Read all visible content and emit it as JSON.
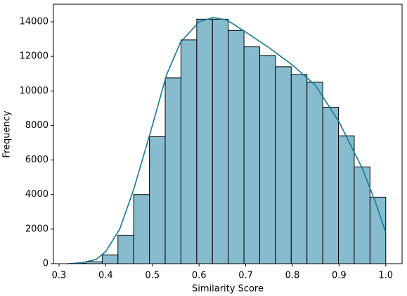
{
  "chart_data": {
    "type": "histogram",
    "xlabel": "Similarity Score",
    "ylabel": "Frequency",
    "bins": [
      0.325,
      0.35875,
      0.3925,
      0.42625,
      0.46,
      0.49375,
      0.5275,
      0.56125,
      0.595,
      0.62875,
      0.6625,
      0.69625,
      0.73,
      0.76375,
      0.7975,
      0.83125,
      0.865,
      0.89875,
      0.9325,
      0.96625,
      1.0
    ],
    "values": [
      20,
      110,
      500,
      1650,
      4000,
      7350,
      10750,
      12950,
      14150,
      14150,
      13500,
      12550,
      12050,
      11400,
      10950,
      10500,
      9050,
      7400,
      5600,
      3850
    ],
    "color": "#87bccf",
    "edgecolor": "#000000",
    "kde": {
      "color": "#157a96",
      "x": [
        0.32,
        0.35,
        0.38,
        0.4,
        0.43,
        0.46,
        0.5,
        0.53,
        0.56,
        0.6,
        0.63,
        0.66,
        0.7,
        0.75,
        0.8,
        0.85,
        0.9,
        0.95,
        0.98,
        1.0
      ],
      "y": [
        0,
        60,
        250,
        700,
        2000,
        4300,
        8000,
        10900,
        12800,
        14000,
        14250,
        14100,
        13400,
        12500,
        11500,
        10300,
        8200,
        5500,
        3400,
        1800
      ]
    },
    "xlim": [
      0.288,
      1.035
    ],
    "ylim": [
      0,
      15017
    ],
    "xticks": [
      0.3,
      0.4,
      0.5,
      0.6,
      0.7,
      0.8,
      0.9,
      {
        "value": 1,
        "label": "1.0"
      }
    ],
    "yticks": [
      0,
      2000,
      4000,
      6000,
      8000,
      10000,
      12000,
      14000
    ]
  }
}
